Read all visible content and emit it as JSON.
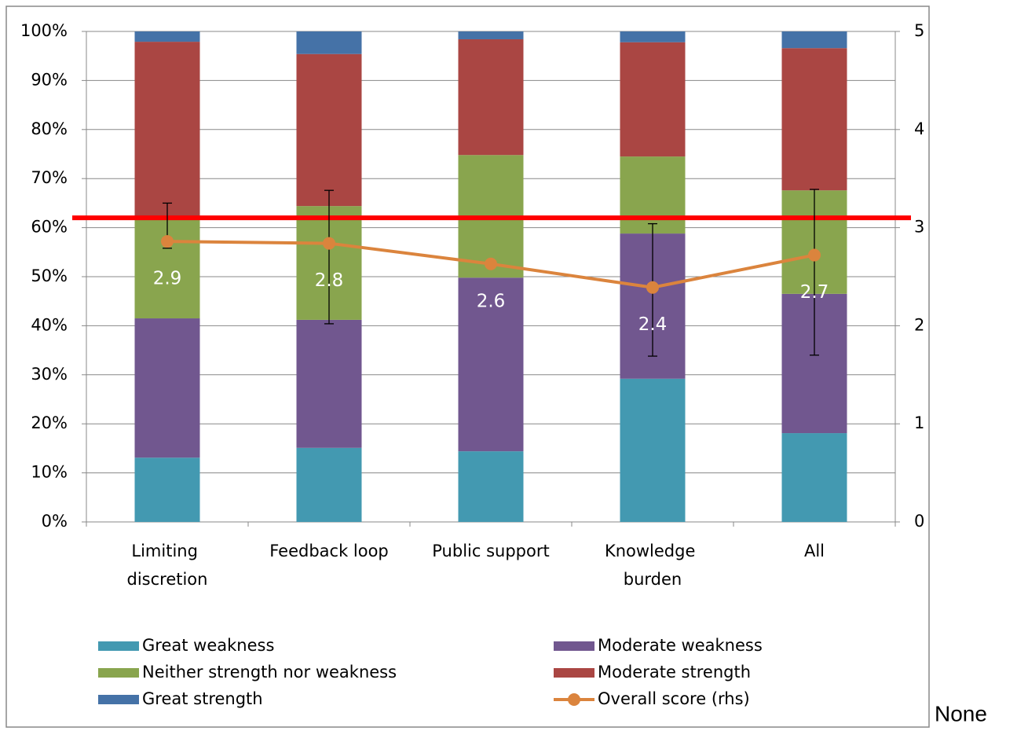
{
  "chart_data": {
    "type": "bar",
    "stacked": true,
    "categories": [
      "Limiting discretion",
      "Feedback loop",
      "Public support",
      "Knowledge burden",
      "All"
    ],
    "series": [
      {
        "name": "Great weakness",
        "color": "#4399b1",
        "values": [
          13.1,
          15.1,
          14.4,
          29.2,
          18.1
        ]
      },
      {
        "name": "Moderate weakness",
        "color": "#71578f",
        "values": [
          28.4,
          26.1,
          35.4,
          29.6,
          28.4
        ]
      },
      {
        "name": "Neither strength nor weakness",
        "color": "#89a54e",
        "values": [
          20.4,
          23.2,
          25.0,
          15.7,
          21.1
        ]
      },
      {
        "name": "Moderate strength",
        "color": "#aa4643",
        "values": [
          36.0,
          31.0,
          23.6,
          23.3,
          29.0
        ]
      },
      {
        "name": "Great strength",
        "color": "#4572a7",
        "values": [
          2.1,
          4.6,
          1.6,
          2.2,
          3.4
        ]
      },
      {
        "name": "Overall score (rhs)",
        "color": "#db843d",
        "type": "line",
        "axis": "y2",
        "values": [
          2.86,
          2.84,
          2.63,
          2.39,
          2.72
        ],
        "value_labels": [
          "2.9",
          "2.8",
          "2.6",
          "2.4",
          "2.7"
        ],
        "error_low": [
          2.79,
          2.02,
          null,
          1.69,
          1.7
        ],
        "error_high": [
          3.25,
          3.38,
          null,
          3.04,
          3.39
        ]
      }
    ],
    "ylim": [
      0,
      100
    ],
    "yticks": [
      {
        "value": 0,
        "label": "0%"
      },
      {
        "value": 10,
        "label": "10%"
      },
      {
        "value": 20,
        "label": "20%"
      },
      {
        "value": 30,
        "label": "30%"
      },
      {
        "value": 40,
        "label": "40%"
      },
      {
        "value": 50,
        "label": "50%"
      },
      {
        "value": 60,
        "label": "60%"
      },
      {
        "value": 70,
        "label": "70%"
      },
      {
        "value": 80,
        "label": "80%"
      },
      {
        "value": 90,
        "label": "90%"
      },
      {
        "value": 100,
        "label": "100%"
      }
    ],
    "y2lim": [
      0,
      5
    ],
    "y2ticks": [
      0,
      1,
      2,
      3,
      4,
      5
    ],
    "reference_line": {
      "value": 3.1,
      "axis": "y2",
      "color": "#ff0000"
    },
    "grid": true,
    "legend": "bottom"
  },
  "footer_text": "None"
}
